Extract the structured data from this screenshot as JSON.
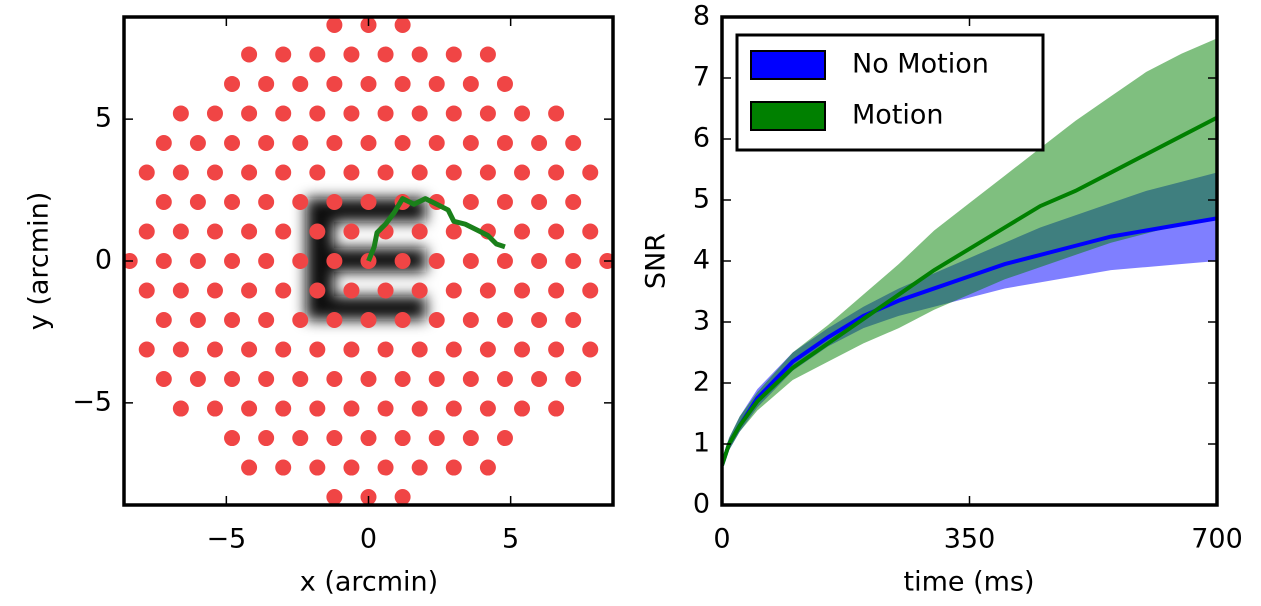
{
  "chart_data": [
    {
      "type": "scatter",
      "x": [
        -1.2,
        0,
        1.2,
        -4.2,
        -3,
        -1.8,
        -0.6,
        0.6,
        1.8,
        3,
        4.2,
        -4.8,
        -3.6,
        -2.4,
        -1.2,
        0,
        1.2,
        2.4,
        3.6,
        4.8,
        -6.6,
        -5.4,
        -4.2,
        -3,
        -1.8,
        -0.6,
        0.6,
        1.8,
        3,
        4.2,
        5.4,
        6.6,
        -7.2,
        -6,
        -4.8,
        -3.6,
        -2.4,
        -1.2,
        0,
        1.2,
        2.4,
        3.6,
        4.8,
        6,
        7.2,
        -7.8,
        -6.6,
        -5.4,
        -4.2,
        -3,
        -1.8,
        -0.6,
        0.6,
        1.8,
        3,
        4.2,
        5.4,
        6.6,
        7.8,
        -7.2,
        -6,
        -4.8,
        -3.6,
        -2.4,
        -1.2,
        0,
        1.2,
        2.4,
        3.6,
        4.8,
        6,
        7.2,
        -7.8,
        -6.6,
        -5.4,
        -4.2,
        -3,
        -1.8,
        -0.6,
        0.6,
        1.8,
        3,
        4.2,
        5.4,
        6.6,
        7.8,
        -8.4,
        -7.2,
        -6,
        -4.8,
        -3.6,
        -2.4,
        -1.2,
        0,
        1.2,
        2.4,
        3.6,
        4.8,
        6,
        7.2,
        8.4,
        -7.8,
        -6.6,
        -5.4,
        -4.2,
        -3,
        -1.8,
        -0.6,
        0.6,
        1.8,
        3,
        4.2,
        5.4,
        6.6,
        7.8,
        -7.2,
        -6,
        -4.8,
        -3.6,
        -2.4,
        -1.2,
        0,
        1.2,
        2.4,
        3.6,
        4.8,
        6,
        7.2,
        -7.8,
        -6.6,
        -5.4,
        -4.2,
        -3,
        -1.8,
        -0.6,
        0.6,
        1.8,
        3,
        4.2,
        5.4,
        6.6,
        7.8,
        -7.2,
        -6,
        -4.8,
        -3.6,
        -2.4,
        -1.2,
        0,
        1.2,
        2.4,
        3.6,
        4.8,
        6,
        7.2,
        -6.6,
        -5.4,
        -4.2,
        -3,
        -1.8,
        -0.6,
        0.6,
        1.8,
        3,
        4.2,
        5.4,
        6.6,
        -4.8,
        -3.6,
        -2.4,
        -1.2,
        0,
        1.2,
        2.4,
        3.6,
        4.8,
        -4.2,
        -3,
        -1.8,
        -0.6,
        0.6,
        1.8,
        3,
        4.2,
        -1.2,
        0,
        1.2
      ],
      "y": [
        8.32,
        8.32,
        8.32,
        7.28,
        7.28,
        7.28,
        7.28,
        7.28,
        7.28,
        7.28,
        7.28,
        6.24,
        6.24,
        6.24,
        6.24,
        6.24,
        6.24,
        6.24,
        6.24,
        6.24,
        5.2,
        5.2,
        5.2,
        5.2,
        5.2,
        5.2,
        5.2,
        5.2,
        5.2,
        5.2,
        5.2,
        5.2,
        4.16,
        4.16,
        4.16,
        4.16,
        4.16,
        4.16,
        4.16,
        4.16,
        4.16,
        4.16,
        4.16,
        4.16,
        4.16,
        3.12,
        3.12,
        3.12,
        3.12,
        3.12,
        3.12,
        3.12,
        3.12,
        3.12,
        3.12,
        3.12,
        3.12,
        3.12,
        3.12,
        2.08,
        2.08,
        2.08,
        2.08,
        2.08,
        2.08,
        2.08,
        2.08,
        2.08,
        2.08,
        2.08,
        2.08,
        2.08,
        1.04,
        1.04,
        1.04,
        1.04,
        1.04,
        1.04,
        1.04,
        1.04,
        1.04,
        1.04,
        1.04,
        1.04,
        1.04,
        1.04,
        0,
        0,
        0,
        0,
        0,
        0,
        0,
        0,
        0,
        0,
        0,
        0,
        0,
        0,
        0,
        -1.04,
        -1.04,
        -1.04,
        -1.04,
        -1.04,
        -1.04,
        -1.04,
        -1.04,
        -1.04,
        -1.04,
        -1.04,
        -1.04,
        -1.04,
        -1.04,
        -2.08,
        -2.08,
        -2.08,
        -2.08,
        -2.08,
        -2.08,
        -2.08,
        -2.08,
        -2.08,
        -2.08,
        -2.08,
        -2.08,
        -2.08,
        -3.12,
        -3.12,
        -3.12,
        -3.12,
        -3.12,
        -3.12,
        -3.12,
        -3.12,
        -3.12,
        -3.12,
        -3.12,
        -3.12,
        -3.12,
        -3.12,
        -4.16,
        -4.16,
        -4.16,
        -4.16,
        -4.16,
        -4.16,
        -4.16,
        -4.16,
        -4.16,
        -4.16,
        -4.16,
        -4.16,
        -4.16,
        -5.2,
        -5.2,
        -5.2,
        -5.2,
        -5.2,
        -5.2,
        -5.2,
        -5.2,
        -5.2,
        -5.2,
        -5.2,
        -5.2,
        -6.24,
        -6.24,
        -6.24,
        -6.24,
        -6.24,
        -6.24,
        -6.24,
        -6.24,
        -6.24,
        -7.28,
        -7.28,
        -7.28,
        -7.28,
        -7.28,
        -7.28,
        -7.28,
        -7.28,
        -8.32,
        -8.32,
        -8.32
      ],
      "color": "#f04545",
      "trajectory": {
        "x": [
          0,
          0.2,
          0.3,
          0.6,
          0.9,
          1.2,
          1.6,
          2.0,
          2.4,
          2.8,
          3.0,
          3.4,
          3.8,
          4.2,
          4.5,
          4.8
        ],
        "y": [
          0,
          0.5,
          1.0,
          1.3,
          1.7,
          2.2,
          2.0,
          2.2,
          2.0,
          1.8,
          1.4,
          1.3,
          1.1,
          0.9,
          0.6,
          0.5
        ],
        "color": "#1a801a"
      },
      "xlim": [
        -8.6,
        8.6
      ],
      "ylim": [
        -8.6,
        8.6
      ],
      "xticks": [
        {
          "value": -5,
          "label": "−5"
        },
        0,
        5
      ],
      "yticks": [
        {
          "value": -5,
          "label": "−5"
        },
        0,
        5
      ],
      "xlabel": "x (arcmin)",
      "ylabel": "y (arcmin)"
    },
    {
      "type": "line",
      "x": [
        0,
        10,
        25,
        50,
        100,
        150,
        200,
        250,
        300,
        350,
        400,
        450,
        500,
        550,
        600,
        650,
        700
      ],
      "series": [
        {
          "name": "No Motion",
          "color": "#0000ff",
          "values": [
            0.65,
            1.0,
            1.3,
            1.75,
            2.35,
            2.75,
            3.1,
            3.35,
            3.55,
            3.75,
            3.95,
            4.1,
            4.25,
            4.4,
            4.5,
            4.6,
            4.7
          ],
          "lower": [
            0.6,
            0.9,
            1.2,
            1.6,
            2.2,
            2.6,
            2.9,
            3.1,
            3.25,
            3.4,
            3.55,
            3.65,
            3.75,
            3.85,
            3.9,
            3.95,
            4.0
          ],
          "upper": [
            0.75,
            1.1,
            1.45,
            1.9,
            2.5,
            2.9,
            3.25,
            3.55,
            3.8,
            4.05,
            4.3,
            4.55,
            4.75,
            4.95,
            5.15,
            5.3,
            5.45
          ]
        },
        {
          "name": "Motion",
          "color": "#008000",
          "values": [
            0.65,
            1.0,
            1.3,
            1.7,
            2.25,
            2.65,
            3.05,
            3.45,
            3.85,
            4.2,
            4.55,
            4.9,
            5.15,
            5.45,
            5.75,
            6.05,
            6.35
          ],
          "lower": [
            0.6,
            0.9,
            1.2,
            1.55,
            2.05,
            2.35,
            2.65,
            2.9,
            3.2,
            3.45,
            3.7,
            3.9,
            4.1,
            4.3,
            4.45,
            4.6,
            4.7
          ],
          "upper": [
            0.75,
            1.1,
            1.45,
            1.85,
            2.5,
            2.95,
            3.45,
            3.95,
            4.5,
            4.95,
            5.4,
            5.85,
            6.3,
            6.7,
            7.1,
            7.4,
            7.65
          ]
        }
      ],
      "xlim": [
        0,
        700
      ],
      "ylim": [
        0,
        8
      ],
      "xticks": [
        0,
        350,
        700
      ],
      "yticks": [
        0,
        1,
        2,
        3,
        4,
        5,
        6,
        7,
        8
      ],
      "xlabel": "time (ms)",
      "ylabel": "SNR",
      "legend": "upper left"
    }
  ]
}
